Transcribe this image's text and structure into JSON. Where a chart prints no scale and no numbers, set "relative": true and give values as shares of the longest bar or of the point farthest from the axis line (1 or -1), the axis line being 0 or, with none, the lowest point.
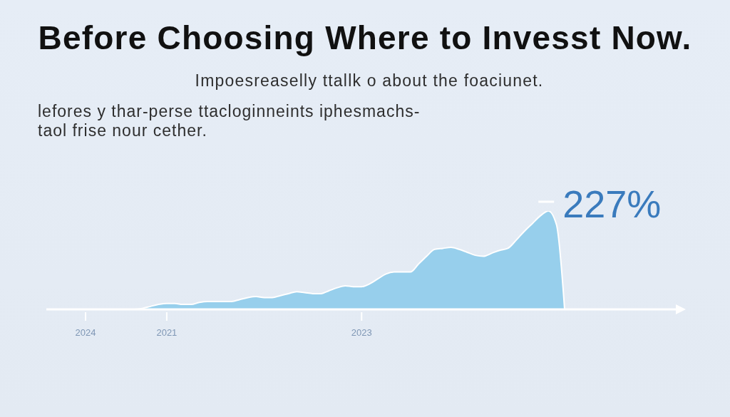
{
  "chart_data": {
    "type": "area",
    "title": "Before Choosing Where to Invesst Now.",
    "subtitle": "Impoesreaselly ttallk o about the foaciunet.",
    "annotations": [
      "lefores y thar-perse ttacloginneints iphesmachs-\ntaol frise nour cether.",
      "227%"
    ],
    "relative": true,
    "color": "#97cfec",
    "categories": [
      "2024",
      null,
      null,
      null,
      null,
      null,
      null,
      null,
      null,
      null,
      "2021",
      null,
      null,
      null,
      null,
      null,
      null,
      null,
      null,
      null,
      null,
      null,
      null,
      null,
      null,
      null,
      null,
      null,
      null,
      null,
      null,
      null,
      null,
      null,
      "2023",
      null,
      null,
      null,
      null,
      null,
      null,
      null,
      null,
      null,
      null,
      null,
      null,
      null,
      null,
      null,
      null,
      null,
      null,
      null,
      null,
      null,
      null,
      null,
      null,
      null
    ],
    "values": [
      null,
      null,
      null,
      null,
      null,
      null,
      0,
      0.01,
      0.03,
      0.05,
      0.06,
      0.06,
      0.05,
      0.05,
      0.07,
      0.08,
      0.08,
      0.08,
      0.08,
      0.1,
      0.12,
      0.13,
      0.12,
      0.12,
      0.14,
      0.16,
      0.18,
      0.17,
      0.16,
      0.16,
      0.19,
      0.22,
      0.24,
      0.23,
      0.23,
      0.26,
      0.31,
      0.36,
      0.38,
      0.38,
      0.38,
      0.46,
      0.54,
      0.61,
      0.62,
      0.63,
      0.61,
      0.58,
      0.55,
      0.54,
      0.57,
      0.6,
      0.62,
      0.7,
      0.79,
      0.87,
      0.95,
      1,
      0.86,
      0
    ]
  }
}
